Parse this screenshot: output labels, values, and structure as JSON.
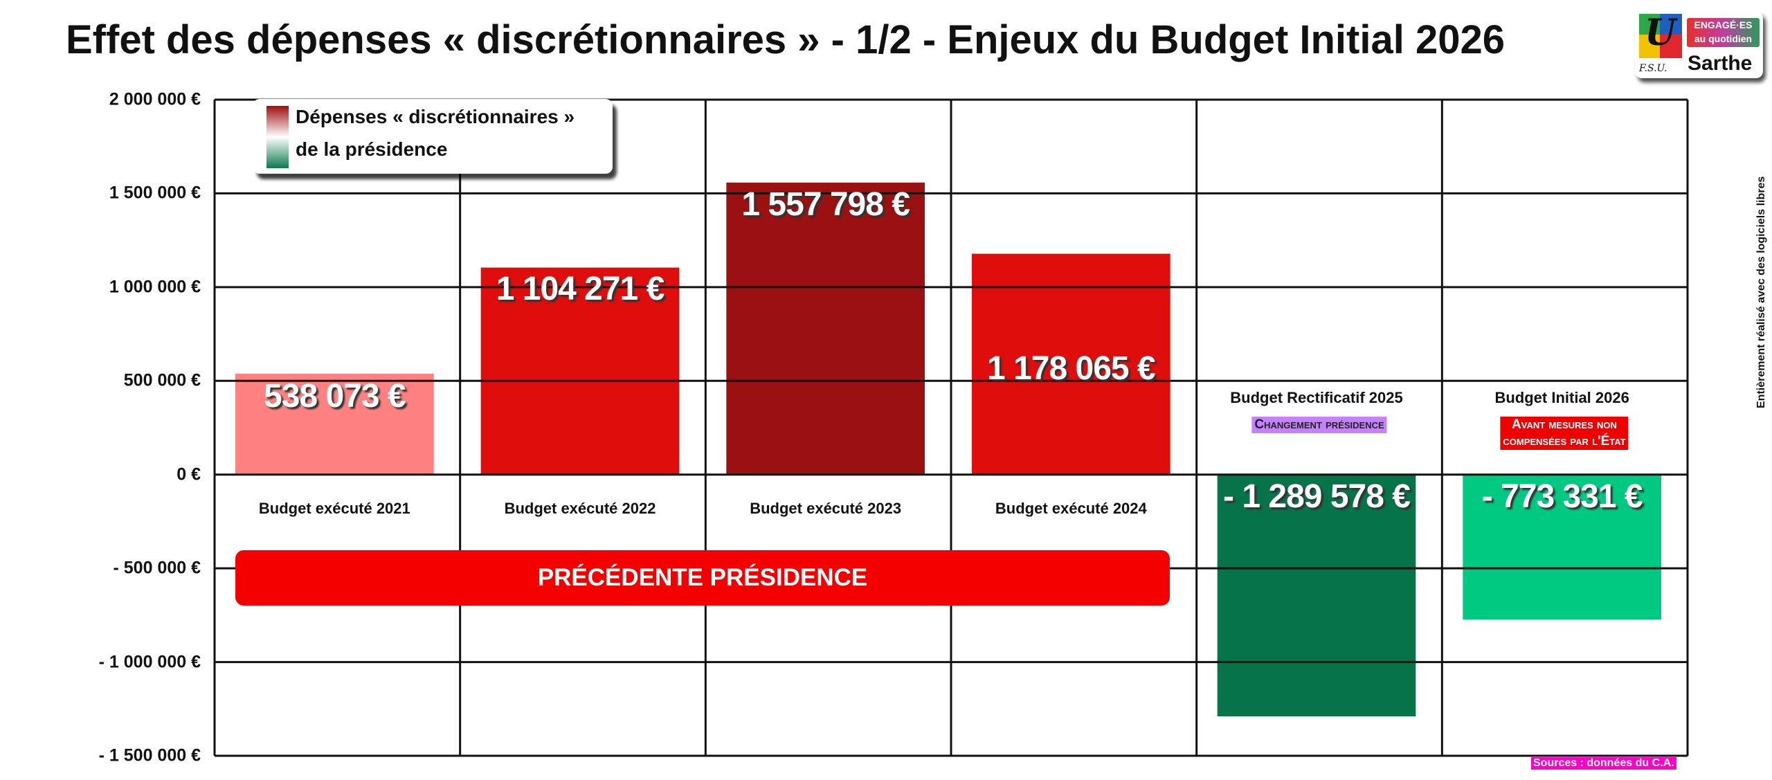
{
  "title": "Effet des dépenses « discrétionnaires » - 1/2 - Enjeux du Budget Initial 2026",
  "logo": {
    "line1": "ENGAGÉ·ES",
    "line2": "au quotidien",
    "org": "F.S.U.",
    "place": "Sarthe"
  },
  "side_note": "Entièrement réalisé avec des logiciels libres",
  "source": "Sources : données du C.A.",
  "chart_data": {
    "type": "bar",
    "title": "Effet des dépenses « discrétionnaires » - 1/2 - Enjeux du Budget Initial 2026",
    "categories": [
      "Budget exécuté 2021",
      "Budget exécuté 2022",
      "Budget exécuté 2023",
      "Budget exécuté 2024",
      "Budget Rectificatif 2025",
      "Budget Initial 2026"
    ],
    "values": [
      538073,
      1104271,
      1557798,
      1178065,
      -1289578,
      -773331
    ],
    "value_labels": [
      "538 073 €",
      "1 104 271 €",
      "1 557 798 €",
      "1 178 065 €",
      "- 1 289 578 €",
      "- 773 331 €"
    ],
    "colors": [
      "#ff8080",
      "#e00d0d",
      "#9b1010",
      "#e00d0d",
      "#077348",
      "#00c982"
    ],
    "ylim": [
      -1500000,
      2000000
    ],
    "yticks": [
      2000000,
      1500000,
      1000000,
      500000,
      0,
      -500000,
      -1000000,
      -1500000
    ],
    "ytick_labels": [
      "2 000 000 €",
      "1 500 000 €",
      "1 000 000 €",
      "500 000 €",
      "0 €",
      "- 500 000 €",
      "- 1 000 000 €",
      "- 1 500 000 €"
    ],
    "grid": true,
    "legend": {
      "line1": "Dépenses « discrétionnaires »",
      "line2": "de la présidence",
      "placement": "top-left"
    },
    "annotations": {
      "banner": "PRÉCÉDENTE PRÉSIDENCE",
      "note_2025": "Changement présidence",
      "note_2026_line1": "Avant mesures non",
      "note_2026_line2": "compensées par l'État"
    }
  }
}
